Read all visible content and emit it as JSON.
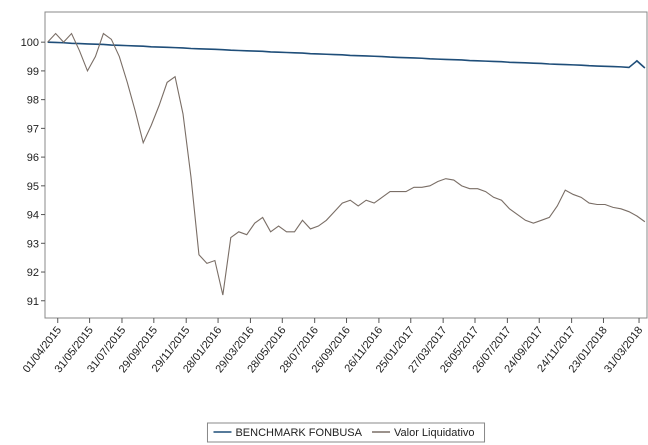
{
  "chart_data": {
    "type": "line",
    "x": [
      "13/03/2015",
      "28/03/2015",
      "12/04/2015",
      "27/04/2015",
      "12/05/2015",
      "27/05/2015",
      "11/06/2015",
      "26/06/2015",
      "11/07/2015",
      "26/07/2015",
      "10/08/2015",
      "25/08/2015",
      "09/09/2015",
      "24/09/2015",
      "09/10/2015",
      "24/10/2015",
      "08/11/2015",
      "23/11/2015",
      "08/12/2015",
      "23/12/2015",
      "07/01/2016",
      "22/01/2016",
      "06/02/2016",
      "21/02/2016",
      "07/03/2016",
      "22/03/2016",
      "06/04/2016",
      "21/04/2016",
      "06/05/2016",
      "21/05/2016",
      "05/06/2016",
      "20/06/2016",
      "05/07/2016",
      "20/07/2016",
      "04/08/2016",
      "19/08/2016",
      "03/09/2016",
      "18/09/2016",
      "03/10/2016",
      "18/10/2016",
      "02/11/2016",
      "17/11/2016",
      "02/12/2016",
      "17/12/2016",
      "01/01/2017",
      "16/01/2017",
      "31/01/2017",
      "15/02/2017",
      "02/03/2017",
      "17/03/2017",
      "01/04/2017",
      "16/04/2017",
      "01/05/2017",
      "16/05/2017",
      "31/05/2017",
      "15/06/2017",
      "30/06/2017",
      "15/07/2017",
      "30/07/2017",
      "14/08/2017",
      "29/08/2017",
      "13/09/2017",
      "28/09/2017",
      "13/10/2017",
      "28/10/2017",
      "12/11/2017",
      "27/11/2017",
      "12/12/2017",
      "27/12/2017",
      "11/01/2018",
      "26/01/2018",
      "10/02/2018",
      "25/02/2018",
      "12/03/2018",
      "27/03/2018",
      "11/04/2018"
    ],
    "series": [
      {
        "name": "BENCHMARK FONBUSA",
        "color": "#1f4e79",
        "values": [
          100.0,
          99.99,
          99.98,
          99.96,
          99.95,
          99.94,
          99.93,
          99.92,
          99.9,
          99.89,
          99.88,
          99.87,
          99.86,
          99.84,
          99.83,
          99.82,
          99.81,
          99.8,
          99.78,
          99.77,
          99.76,
          99.75,
          99.74,
          99.72,
          99.71,
          99.7,
          99.69,
          99.68,
          99.66,
          99.65,
          99.64,
          99.63,
          99.62,
          99.6,
          99.59,
          99.58,
          99.57,
          99.56,
          99.54,
          99.53,
          99.52,
          99.51,
          99.5,
          99.48,
          99.47,
          99.46,
          99.45,
          99.44,
          99.42,
          99.41,
          99.4,
          99.39,
          99.38,
          99.36,
          99.35,
          99.34,
          99.33,
          99.32,
          99.3,
          99.29,
          99.28,
          99.27,
          99.26,
          99.24,
          99.23,
          99.22,
          99.21,
          99.2,
          99.18,
          99.17,
          99.16,
          99.15,
          99.14,
          99.12,
          99.35,
          99.1
        ]
      },
      {
        "name": "Valor Liquidativo",
        "color": "#7a6e66",
        "values": [
          100.0,
          100.3,
          100.0,
          100.3,
          99.7,
          99.0,
          99.5,
          100.3,
          100.1,
          99.5,
          98.6,
          97.6,
          96.5,
          97.1,
          97.8,
          98.6,
          98.8,
          97.5,
          95.3,
          92.6,
          92.3,
          92.4,
          91.2,
          93.2,
          93.4,
          93.3,
          93.7,
          93.9,
          93.4,
          93.6,
          93.4,
          93.4,
          93.8,
          93.5,
          93.6,
          93.8,
          94.1,
          94.4,
          94.5,
          94.3,
          94.5,
          94.4,
          94.6,
          94.8,
          94.8,
          94.8,
          94.95,
          94.95,
          95.0,
          95.15,
          95.25,
          95.2,
          95.0,
          94.9,
          94.9,
          94.8,
          94.6,
          94.5,
          94.2,
          94.0,
          93.8,
          93.7,
          93.8,
          93.9,
          94.3,
          94.85,
          94.7,
          94.6,
          94.4,
          94.35,
          94.35,
          94.25,
          94.2,
          94.1,
          93.95,
          93.75
        ]
      }
    ],
    "xlim": [
      "08/03/2015",
      "15/04/2018"
    ],
    "xticks": [
      "01/04/2015",
      "31/05/2015",
      "31/07/2015",
      "29/09/2015",
      "29/11/2015",
      "28/01/2016",
      "29/03/2016",
      "28/05/2016",
      "28/07/2016",
      "26/09/2016",
      "26/11/2016",
      "25/01/2017",
      "27/03/2017",
      "26/05/2017",
      "26/07/2017",
      "24/09/2017",
      "24/11/2017",
      "23/01/2018",
      "31/03/2018"
    ],
    "ylim": [
      90.4,
      101.05
    ],
    "yticks": [
      91,
      92,
      93,
      94,
      95,
      96,
      97,
      98,
      99,
      100
    ],
    "grid": false,
    "legend": "bottom"
  }
}
